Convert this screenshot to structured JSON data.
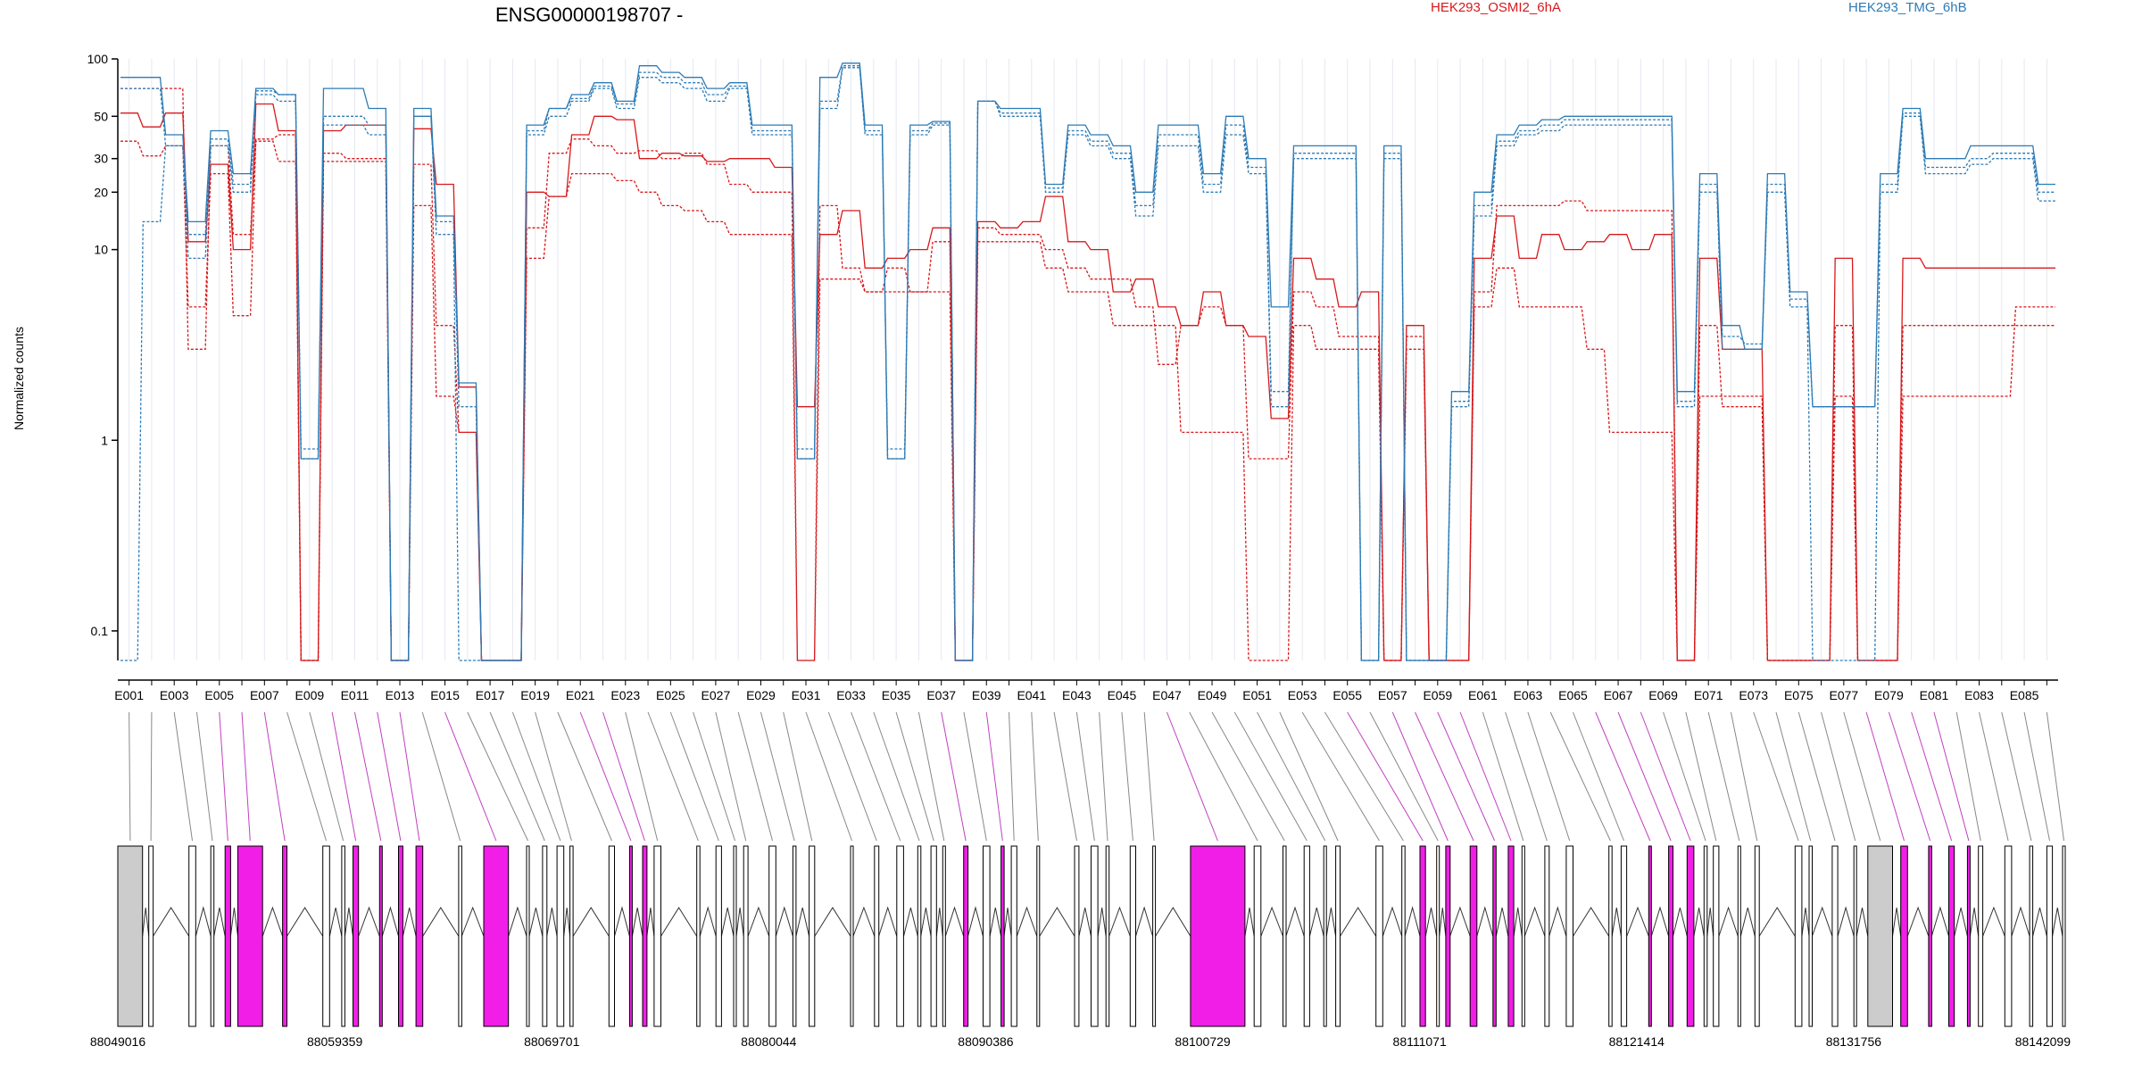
{
  "chart_data": {
    "type": "line",
    "title": "ENSG00000198707 -",
    "ylabel": "Normalized counts",
    "yscale": "log",
    "ylim": [
      0.07,
      100
    ],
    "y_ticks": [
      0.1,
      1,
      10,
      20,
      30,
      50,
      100
    ],
    "y_tick_labels": [
      "0.1",
      "1",
      "10",
      "20",
      "30",
      "50",
      "100"
    ],
    "legend": [
      {
        "label": "HEK293_OSMI2_6hA",
        "color": "#d7191c"
      },
      {
        "label": "HEK293_TMG_6hB",
        "color": "#2c7bb6"
      }
    ],
    "exon_count": 86,
    "x_tick_labels": [
      "E001",
      "E003",
      "E005",
      "E007",
      "E009",
      "E011",
      "E013",
      "E015",
      "E017",
      "E019",
      "E021",
      "E023",
      "E025",
      "E027",
      "E029",
      "E031",
      "E033",
      "E035",
      "E037",
      "E039",
      "E041",
      "E043",
      "E045",
      "E047",
      "E049",
      "E051",
      "E053",
      "E055",
      "E057",
      "E059",
      "E061",
      "E063",
      "E065",
      "E067",
      "E069",
      "E071",
      "E073",
      "E075",
      "E077",
      "E079",
      "E081",
      "E083",
      "E085"
    ],
    "genomic_coordinates": [
      "88049016",
      "88059359",
      "88069701",
      "88080044",
      "88090386",
      "88100729",
      "88111071",
      "88121414",
      "88131756",
      "88142099"
    ],
    "highlighted_exons": [
      4,
      5,
      6,
      9,
      10,
      11,
      12,
      14,
      20,
      21,
      36,
      38,
      46,
      54,
      56,
      57,
      58,
      59,
      65,
      66,
      67,
      77,
      78,
      79,
      80
    ],
    "series": [
      {
        "group": "HEK293_OSMI2_6hA",
        "color": "#d7191c",
        "values": [
          52,
          44,
          52,
          11,
          28,
          10,
          58,
          42,
          0.07,
          42,
          45,
          45,
          0.07,
          43,
          22,
          1.9,
          0.07,
          0.07,
          20,
          19,
          40,
          50,
          48,
          30,
          32,
          31,
          29,
          30,
          30,
          27,
          1.5,
          12,
          16,
          8,
          9,
          10,
          13,
          0.07,
          14,
          13,
          14,
          19,
          11,
          10,
          6,
          7,
          5,
          4,
          6,
          4,
          3.5,
          1.3,
          9,
          7,
          5,
          6,
          0.07,
          4,
          0.07,
          0.07,
          9,
          15,
          9,
          12,
          10,
          11,
          12,
          10,
          12,
          0.07,
          9,
          3,
          3,
          0.07,
          0.07,
          0.07,
          9,
          0.07,
          0.07,
          9,
          8,
          8,
          8,
          8,
          8,
          8
        ]
      },
      {
        "group": "HEK293_OSMI2_6hA",
        "color": "#d7191c",
        "values": [
          37,
          31,
          35,
          5,
          25,
          4.5,
          38,
          40,
          0.07,
          32,
          30,
          30,
          0.07,
          28,
          4,
          1.1,
          0.07,
          0.07,
          13,
          32,
          38,
          35,
          32,
          33,
          30,
          32,
          28,
          22,
          20,
          20,
          0.07,
          17,
          8,
          6,
          8,
          6,
          11,
          0.07,
          13,
          12,
          12,
          10,
          8,
          7,
          7,
          5,
          2.5,
          4,
          5,
          4,
          0.8,
          0.8,
          6,
          5,
          3.5,
          3.5,
          0.07,
          3.5,
          0.07,
          0.07,
          6,
          17,
          17,
          17,
          18,
          16,
          16,
          16,
          16,
          0.07,
          4,
          1.5,
          1.5,
          0.07,
          0.07,
          0.07,
          4,
          0.07,
          0.07,
          4,
          4,
          4,
          4,
          4,
          4,
          4
        ]
      },
      {
        "group": "HEK293_OSMI2_6hA",
        "color": "#d7191c",
        "values": [
          70,
          70,
          70,
          3,
          35,
          12,
          37,
          29,
          0.07,
          29,
          29,
          29,
          0.07,
          17,
          1.7,
          1.1,
          0.07,
          0.07,
          9,
          19,
          25,
          25,
          23,
          20,
          17,
          16,
          14,
          12,
          12,
          12,
          0.07,
          7,
          7,
          6,
          6,
          6,
          6,
          0.07,
          11,
          11,
          11,
          8,
          6,
          6,
          4,
          4,
          4,
          1.1,
          1.1,
          1.1,
          0.07,
          0.07,
          4,
          3,
          3,
          3,
          0.07,
          3,
          0.07,
          0.07,
          5,
          8,
          5,
          5,
          5,
          3,
          1.1,
          1.1,
          1.1,
          0.07,
          1.7,
          1.7,
          1.7,
          0.07,
          0.07,
          0.07,
          1.7,
          0.07,
          0.07,
          1.7,
          1.7,
          1.7,
          1.7,
          1.7,
          5,
          5
        ]
      },
      {
        "group": "HEK293_TMG_6hB",
        "color": "#2c7bb6",
        "values": [
          80,
          80,
          40,
          14,
          42,
          25,
          70,
          65,
          0.8,
          70,
          70,
          55,
          0.07,
          55,
          15,
          2,
          0.07,
          0.07,
          45,
          55,
          65,
          75,
          60,
          92,
          85,
          80,
          70,
          75,
          45,
          45,
          0.8,
          80,
          95,
          45,
          0.8,
          45,
          47,
          0.07,
          60,
          55,
          55,
          22,
          45,
          40,
          35,
          20,
          45,
          45,
          25,
          50,
          30,
          5,
          35,
          35,
          35,
          0.07,
          35,
          0.07,
          0.07,
          1.8,
          20,
          40,
          45,
          48,
          50,
          50,
          50,
          50,
          50,
          1.8,
          25,
          4,
          3,
          25,
          6,
          1.5,
          1.5,
          1.5,
          25,
          55,
          30,
          30,
          35,
          35,
          35,
          22
        ]
      },
      {
        "group": "HEK293_TMG_6hB",
        "color": "#2c7bb6",
        "values": [
          70,
          70,
          35,
          9,
          35,
          20,
          65,
          60,
          0.8,
          45,
          45,
          40,
          0.07,
          50,
          12,
          0.07,
          0.07,
          0.07,
          40,
          50,
          60,
          70,
          55,
          80,
          75,
          70,
          60,
          70,
          40,
          40,
          0.8,
          55,
          90,
          40,
          0.8,
          40,
          45,
          0.07,
          60,
          50,
          50,
          20,
          40,
          35,
          30,
          15,
          35,
          35,
          20,
          40,
          25,
          1.5,
          30,
          30,
          30,
          0.07,
          30,
          0.07,
          0.07,
          1.5,
          15,
          35,
          40,
          42,
          45,
          45,
          45,
          45,
          45,
          1.5,
          20,
          3,
          3,
          20,
          5,
          0.07,
          0.07,
          0.07,
          20,
          50,
          25,
          25,
          28,
          30,
          30,
          18
        ]
      },
      {
        "group": "HEK293_TMG_6hB",
        "color": "#2c7bb6",
        "values": [
          0.07,
          14,
          35,
          12,
          38,
          22,
          68,
          65,
          0.9,
          50,
          50,
          45,
          0.07,
          50,
          14,
          1.5,
          0.07,
          0.07,
          42,
          55,
          62,
          72,
          58,
          85,
          80,
          75,
          65,
          72,
          42,
          42,
          0.9,
          60,
          92,
          42,
          0.9,
          42,
          46,
          0.07,
          60,
          52,
          52,
          21,
          42,
          37,
          32,
          17,
          40,
          40,
          22,
          45,
          27,
          1.8,
          32,
          32,
          32,
          0.07,
          32,
          0.07,
          0.07,
          1.6,
          17,
          37,
          42,
          45,
          48,
          48,
          48,
          48,
          48,
          1.6,
          22,
          3.5,
          3.2,
          22,
          5.5,
          1.5,
          1.5,
          1.5,
          22,
          52,
          27,
          27,
          30,
          32,
          32,
          20
        ]
      }
    ]
  }
}
